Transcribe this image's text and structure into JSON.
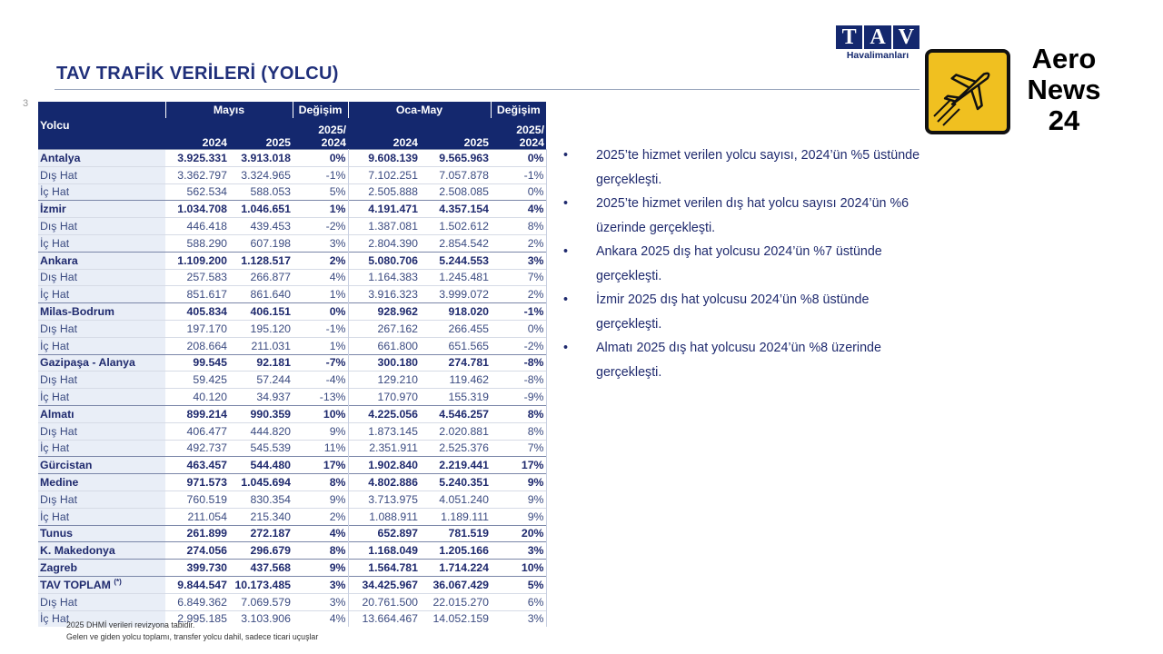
{
  "header": {
    "title": "TAV TRAFİK VERİLERİ (YOLCU)",
    "page_number": "3",
    "logo_letters": [
      "T",
      "A",
      "V"
    ],
    "logo_subtitle": "Havalimanları",
    "watermark": [
      "Aero",
      "News",
      "24"
    ]
  },
  "table": {
    "row_label": "Yolcu",
    "groups": [
      "Mayıs",
      "Değişim",
      "Oca-May",
      "Değişim"
    ],
    "columns": [
      "2024",
      "2025",
      "2025/\n2024",
      "2024",
      "2025",
      "2025/\n2024"
    ],
    "rows": [
      {
        "name": "Antalya",
        "values": [
          "3.925.331",
          "3.913.018",
          "0%",
          "9.608.139",
          "9.565.963",
          "0%"
        ],
        "sub": [
          {
            "name": "Dış Hat",
            "values": [
              "3.362.797",
              "3.324.965",
              "-1%",
              "7.102.251",
              "7.057.878",
              "-1%"
            ]
          },
          {
            "name": "İç Hat",
            "values": [
              "562.534",
              "588.053",
              "5%",
              "2.505.888",
              "2.508.085",
              "0%"
            ]
          }
        ]
      },
      {
        "name": "İzmir",
        "values": [
          "1.034.708",
          "1.046.651",
          "1%",
          "4.191.471",
          "4.357.154",
          "4%"
        ],
        "sub": [
          {
            "name": "Dış Hat",
            "values": [
              "446.418",
              "439.453",
              "-2%",
              "1.387.081",
              "1.502.612",
              "8%"
            ]
          },
          {
            "name": "İç Hat",
            "values": [
              "588.290",
              "607.198",
              "3%",
              "2.804.390",
              "2.854.542",
              "2%"
            ]
          }
        ]
      },
      {
        "name": "Ankara",
        "values": [
          "1.109.200",
          "1.128.517",
          "2%",
          "5.080.706",
          "5.244.553",
          "3%"
        ],
        "sub": [
          {
            "name": "Dış Hat",
            "values": [
              "257.583",
              "266.877",
              "4%",
              "1.164.383",
              "1.245.481",
              "7%"
            ]
          },
          {
            "name": "İç Hat",
            "values": [
              "851.617",
              "861.640",
              "1%",
              "3.916.323",
              "3.999.072",
              "2%"
            ]
          }
        ]
      },
      {
        "name": "Milas-Bodrum",
        "values": [
          "405.834",
          "406.151",
          "0%",
          "928.962",
          "918.020",
          "-1%"
        ],
        "sub": [
          {
            "name": "Dış Hat",
            "values": [
              "197.170",
              "195.120",
              "-1%",
              "267.162",
              "266.455",
              "0%"
            ]
          },
          {
            "name": "İç Hat",
            "values": [
              "208.664",
              "211.031",
              "1%",
              "661.800",
              "651.565",
              "-2%"
            ]
          }
        ]
      },
      {
        "name": "Gazipaşa - Alanya",
        "values": [
          "99.545",
          "92.181",
          "-7%",
          "300.180",
          "274.781",
          "-8%"
        ],
        "sub": [
          {
            "name": "Dış Hat",
            "values": [
              "59.425",
              "57.244",
              "-4%",
              "129.210",
              "119.462",
              "-8%"
            ]
          },
          {
            "name": "İç Hat",
            "values": [
              "40.120",
              "34.937",
              "-13%",
              "170.970",
              "155.319",
              "-9%"
            ]
          }
        ]
      },
      {
        "name": "Almatı",
        "values": [
          "899.214",
          "990.359",
          "10%",
          "4.225.056",
          "4.546.257",
          "8%"
        ],
        "sub": [
          {
            "name": "Dış Hat",
            "values": [
              "406.477",
              "444.820",
              "9%",
              "1.873.145",
              "2.020.881",
              "8%"
            ]
          },
          {
            "name": "İç Hat",
            "values": [
              "492.737",
              "545.539",
              "11%",
              "2.351.911",
              "2.525.376",
              "7%"
            ]
          }
        ]
      },
      {
        "name": "Gürcistan",
        "values": [
          "463.457",
          "544.480",
          "17%",
          "1.902.840",
          "2.219.441",
          "17%"
        ],
        "sub": []
      },
      {
        "name": "Medine",
        "values": [
          "971.573",
          "1.045.694",
          "8%",
          "4.802.886",
          "5.240.351",
          "9%"
        ],
        "sub": [
          {
            "name": "Dış Hat",
            "values": [
              "760.519",
              "830.354",
              "9%",
              "3.713.975",
              "4.051.240",
              "9%"
            ]
          },
          {
            "name": "İç Hat",
            "values": [
              "211.054",
              "215.340",
              "2%",
              "1.088.911",
              "1.189.111",
              "9%"
            ]
          }
        ]
      },
      {
        "name": "Tunus",
        "values": [
          "261.899",
          "272.187",
          "4%",
          "652.897",
          "781.519",
          "20%"
        ],
        "sub": []
      },
      {
        "name": "K. Makedonya",
        "values": [
          "274.056",
          "296.679",
          "8%",
          "1.168.049",
          "1.205.166",
          "3%"
        ],
        "sub": []
      },
      {
        "name": "Zagreb",
        "values": [
          "399.730",
          "437.568",
          "9%",
          "1.564.781",
          "1.714.224",
          "10%"
        ],
        "sub": []
      },
      {
        "name": "TAV TOPLAM",
        "note_mark": "(*)",
        "values": [
          "9.844.547",
          "10.173.485",
          "3%",
          "34.425.967",
          "36.067.429",
          "5%"
        ],
        "sub": [
          {
            "name": "Dış Hat",
            "values": [
              "6.849.362",
              "7.069.579",
              "3%",
              "20.761.500",
              "22.015.270",
              "6%"
            ]
          },
          {
            "name": "İç Hat",
            "values": [
              "2.995.185",
              "3.103.906",
              "4%",
              "13.664.467",
              "14.052.159",
              "3%"
            ]
          }
        ]
      }
    ]
  },
  "bullets": [
    "2025’te hizmet verilen yolcu sayısı, 2024’ün %5 üstünde gerçekleşti.",
    "2025’te hizmet verilen dış hat yolcu sayısı 2024’ün %6 üzerinde gerçekleşti.",
    "Ankara 2025 dış hat yolcusu 2024’ün %7 üstünde gerçekleşti.",
    "İzmir 2025 dış hat yolcusu 2024’ün %8 üstünde gerçekleşti.",
    "Almatı 2025 dış hat yolcusu 2024’ün %8 üzerinde gerçekleşti."
  ],
  "footnotes": [
    "2025 DHMİ verileri revizyona tabidir.",
    "Gelen ve giden yolcu toplamı, transfer yolcu dahil, sadece ticari uçuşlar"
  ]
}
